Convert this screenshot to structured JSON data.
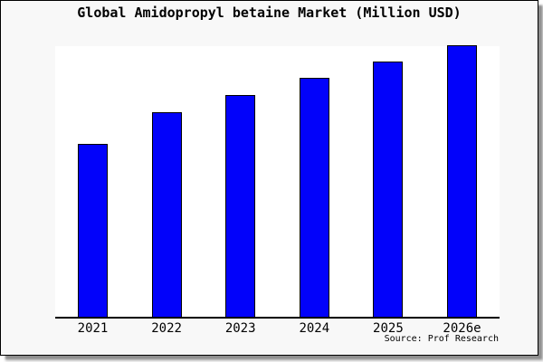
{
  "chart": {
    "title": "Global Amidopropyl betaine Market (Million USD)",
    "source": "Source: Prof Research"
  },
  "chart_data": {
    "type": "bar",
    "title": "Global Amidopropyl betaine Market (Million USD)",
    "categories": [
      "2021",
      "2022",
      "2023",
      "2024",
      "2025",
      "2026e"
    ],
    "values": [
      63.5,
      75.1,
      81.4,
      87.7,
      93.7,
      99.7
    ],
    "xlabel": "",
    "ylabel": "",
    "ylim": [
      0,
      100
    ],
    "y_axis_visible": false,
    "grid": false,
    "legend": null,
    "source": "Source: Prof Research",
    "bar_color": "#0202fa",
    "bar_border_color": "#000000",
    "plot_bg": "#ffffff",
    "figure_bg": "#f8f8f8",
    "axis_color": "#000000"
  }
}
